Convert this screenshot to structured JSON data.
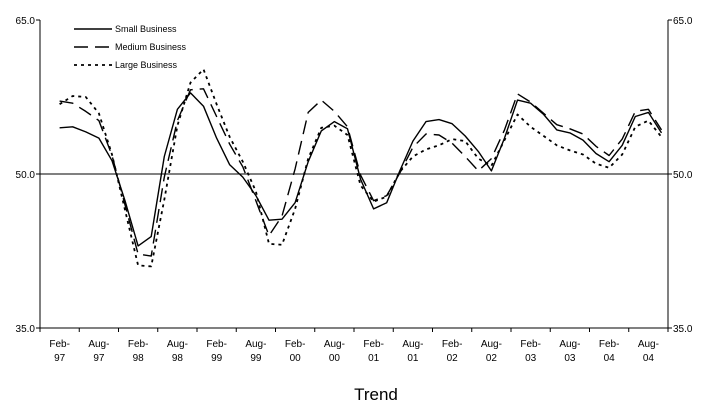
{
  "chart_data": {
    "type": "line",
    "title": "Trend",
    "x": [
      "Feb-97",
      "Apr-97",
      "Jun-97",
      "Aug-97",
      "Oct-97",
      "Dec-97",
      "Feb-98",
      "Apr-98",
      "Jun-98",
      "Aug-98",
      "Oct-98",
      "Dec-98",
      "Feb-99",
      "Apr-99",
      "Jun-99",
      "Aug-99",
      "Oct-99",
      "Dec-99",
      "Feb-00",
      "Apr-00",
      "Jun-00",
      "Aug-00",
      "Oct-00",
      "Dec-00",
      "Feb-01",
      "Apr-01",
      "Jun-01",
      "Aug-01",
      "Oct-01",
      "Dec-01",
      "Feb-02",
      "Apr-02",
      "Jun-02",
      "Aug-02",
      "Oct-02",
      "Dec-02",
      "Feb-03",
      "Apr-03",
      "Jun-03",
      "Aug-03",
      "Oct-03",
      "Dec-03",
      "Feb-04",
      "Apr-04",
      "Jun-04",
      "Aug-04",
      "Oct-04"
    ],
    "x_tick_labels": [
      {
        "line1": "Feb-",
        "line2": "97"
      },
      {
        "line1": "Aug-",
        "line2": "97"
      },
      {
        "line1": "Feb-",
        "line2": "98"
      },
      {
        "line1": "Aug-",
        "line2": "98"
      },
      {
        "line1": "Feb-",
        "line2": "99"
      },
      {
        "line1": "Aug-",
        "line2": "99"
      },
      {
        "line1": "Feb-",
        "line2": "00"
      },
      {
        "line1": "Aug-",
        "line2": "00"
      },
      {
        "line1": "Feb-",
        "line2": "01"
      },
      {
        "line1": "Aug-",
        "line2": "01"
      },
      {
        "line1": "Feb-",
        "line2": "02"
      },
      {
        "line1": "Aug-",
        "line2": "02"
      },
      {
        "line1": "Feb-",
        "line2": "03"
      },
      {
        "line1": "Aug-",
        "line2": "03"
      },
      {
        "line1": "Feb-",
        "line2": "04"
      },
      {
        "line1": "Aug-",
        "line2": "04"
      }
    ],
    "y_ticks": [
      "65.0",
      "50.0",
      "35.0"
    ],
    "y_tick_values": [
      65,
      50,
      35
    ],
    "ylim": [
      35,
      65
    ],
    "reference_line": 50,
    "legend_position": "top-left",
    "series": [
      {
        "name": "Small Business",
        "dash": "solid",
        "values": [
          54.5,
          54.6,
          54.1,
          53.5,
          51.3,
          47.4,
          43.0,
          43.9,
          51.7,
          56.3,
          57.9,
          56.6,
          53.5,
          50.9,
          49.7,
          47.9,
          45.5,
          45.6,
          47.2,
          51.2,
          54.2,
          55.1,
          54.4,
          49.5,
          46.6,
          47.2,
          50.3,
          53.2,
          55.1,
          55.3,
          54.9,
          53.7,
          52.2,
          50.3,
          53.5,
          57.2,
          56.9,
          55.8,
          54.3,
          54.0,
          53.3,
          52.0,
          51.2,
          52.8,
          55.6,
          56.0,
          54.0
        ]
      },
      {
        "name": "Medium Business",
        "dash": "long",
        "values": [
          57.1,
          56.9,
          56.1,
          55.2,
          51.8,
          47.0,
          42.2,
          42.0,
          49.7,
          55.2,
          58.2,
          58.3,
          55.6,
          52.9,
          50.7,
          47.4,
          44.0,
          45.9,
          50.5,
          56.0,
          57.2,
          56.1,
          54.6,
          49.9,
          47.4,
          47.9,
          50.1,
          52.6,
          53.9,
          53.8,
          53.0,
          51.7,
          50.3,
          51.5,
          54.3,
          57.8,
          57.0,
          55.9,
          54.8,
          54.4,
          53.9,
          52.7,
          51.8,
          53.4,
          56.1,
          56.3,
          54.3
        ]
      },
      {
        "name": "Large Business",
        "dash": "dotted",
        "values": [
          56.8,
          57.6,
          57.5,
          55.9,
          51.9,
          46.5,
          41.1,
          41.0,
          47.5,
          54.7,
          58.9,
          60.2,
          56.8,
          53.6,
          51.2,
          48.3,
          43.2,
          43.1,
          46.6,
          51.5,
          54.5,
          54.7,
          53.8,
          48.9,
          47.3,
          47.8,
          50.2,
          51.7,
          52.4,
          52.8,
          53.4,
          53.2,
          51.5,
          50.8,
          53.3,
          55.8,
          54.6,
          53.7,
          52.8,
          52.3,
          51.9,
          51.0,
          50.6,
          51.9,
          54.6,
          55.2,
          53.6
        ]
      }
    ]
  }
}
